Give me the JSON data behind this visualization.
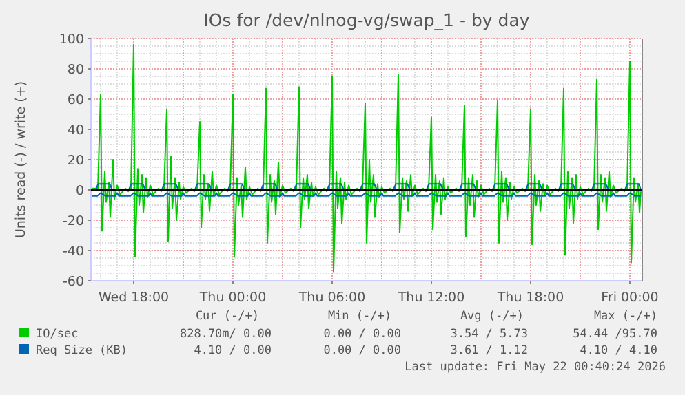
{
  "chart_data": {
    "type": "line",
    "title": "IOs for /dev/nlnog-vg/swap_1 - by day",
    "ylabel": "Units read (-) / write (+)",
    "xlim": [
      "2026-05-20T15:25",
      "2026-05-22T00:45"
    ],
    "xticks": [
      {
        "value": "2026-05-20T18:00",
        "label": "Wed 18:00"
      },
      {
        "value": "2026-05-21T00:00",
        "label": "Thu 00:00"
      },
      {
        "value": "2026-05-21T06:00",
        "label": "Thu 06:00"
      },
      {
        "value": "2026-05-21T12:00",
        "label": "Thu 12:00"
      },
      {
        "value": "2026-05-21T18:00",
        "label": "Thu 18:00"
      },
      {
        "value": "2026-05-22T00:00",
        "label": "Fri 00:00"
      }
    ],
    "ylim": [
      -60,
      100
    ],
    "yticks": [
      -60,
      -40,
      -20,
      0,
      20,
      40,
      60,
      80,
      100
    ],
    "grid": true,
    "legend": "bottom",
    "ref_lines": [
      {
        "axis": "y",
        "value": 0,
        "color": "#000000"
      }
    ],
    "annotations": [
      "Cur (-/+)",
      "Min (-/+)",
      "Avg (-/+)",
      "Max (-/+)",
      "828.70m/ 0.00",
      "0.00 / 0.00",
      "3.54 / 5.73",
      "54.44 /95.70",
      "4.10 / 0.00",
      "0.00 / 0.00",
      "3.61 / 1.12",
      "4.10 / 4.10",
      "Last update: Fri May 22 00:40:24 2026"
    ],
    "series": [
      {
        "name": "IO/sec",
        "color": "#00cc00",
        "x": [
          "2026-05-20T15:30",
          "2026-05-20T15:50",
          "2026-05-20T16:00",
          "2026-05-20T16:05",
          "2026-05-20T16:15",
          "2026-05-20T16:20",
          "2026-05-20T16:30",
          "2026-05-20T16:35",
          "2026-05-20T16:45",
          "2026-05-20T16:50",
          "2026-05-20T17:00",
          "2026-05-20T17:10",
          "2026-05-20T17:30",
          "2026-05-20T17:40",
          "2026-05-20T17:50",
          "2026-05-20T18:00",
          "2026-05-20T18:05",
          "2026-05-20T18:15",
          "2026-05-20T18:20",
          "2026-05-20T18:30",
          "2026-05-20T18:35",
          "2026-05-20T18:45",
          "2026-05-20T18:50",
          "2026-05-20T19:00",
          "2026-05-20T19:10",
          "2026-05-20T19:30",
          "2026-05-20T19:40",
          "2026-05-20T19:50",
          "2026-05-20T20:00",
          "2026-05-20T20:05",
          "2026-05-20T20:15",
          "2026-05-20T20:20",
          "2026-05-20T20:30",
          "2026-05-20T20:35",
          "2026-05-20T20:45",
          "2026-05-20T20:50",
          "2026-05-20T21:00",
          "2026-05-20T21:10",
          "2026-05-20T21:30",
          "2026-05-20T21:40",
          "2026-05-20T21:50",
          "2026-05-20T22:00",
          "2026-05-20T22:05",
          "2026-05-20T22:15",
          "2026-05-20T22:20",
          "2026-05-20T22:30",
          "2026-05-20T22:35",
          "2026-05-20T22:45",
          "2026-05-20T22:50",
          "2026-05-20T23:00",
          "2026-05-20T23:10",
          "2026-05-20T23:30",
          "2026-05-20T23:40",
          "2026-05-20T23:50",
          "2026-05-21T00:00",
          "2026-05-21T00:05",
          "2026-05-21T00:15",
          "2026-05-21T00:20",
          "2026-05-21T00:30",
          "2026-05-21T00:35",
          "2026-05-21T00:45",
          "2026-05-21T00:50",
          "2026-05-21T01:00",
          "2026-05-21T01:10",
          "2026-05-21T01:30",
          "2026-05-21T01:40",
          "2026-05-21T01:50",
          "2026-05-21T02:00",
          "2026-05-21T02:05",
          "2026-05-21T02:15",
          "2026-05-21T02:20",
          "2026-05-21T02:30",
          "2026-05-21T02:35",
          "2026-05-21T02:45",
          "2026-05-21T02:50",
          "2026-05-21T03:00",
          "2026-05-21T03:10",
          "2026-05-21T03:30",
          "2026-05-21T03:40",
          "2026-05-21T03:50",
          "2026-05-21T04:00",
          "2026-05-21T04:05",
          "2026-05-21T04:15",
          "2026-05-21T04:20",
          "2026-05-21T04:30",
          "2026-05-21T04:35",
          "2026-05-21T04:45",
          "2026-05-21T04:50",
          "2026-05-21T05:00",
          "2026-05-21T05:10",
          "2026-05-21T05:30",
          "2026-05-21T05:40",
          "2026-05-21T05:50",
          "2026-05-21T06:00",
          "2026-05-21T06:05",
          "2026-05-21T06:15",
          "2026-05-21T06:20",
          "2026-05-21T06:30",
          "2026-05-21T06:35",
          "2026-05-21T06:45",
          "2026-05-21T06:50",
          "2026-05-21T07:00",
          "2026-05-21T07:10",
          "2026-05-21T07:30",
          "2026-05-21T07:40",
          "2026-05-21T07:50",
          "2026-05-21T08:00",
          "2026-05-21T08:05",
          "2026-05-21T08:15",
          "2026-05-21T08:20",
          "2026-05-21T08:30",
          "2026-05-21T08:35",
          "2026-05-21T08:45",
          "2026-05-21T08:50",
          "2026-05-21T09:00",
          "2026-05-21T09:10",
          "2026-05-21T09:30",
          "2026-05-21T09:40",
          "2026-05-21T09:50",
          "2026-05-21T10:00",
          "2026-05-21T10:05",
          "2026-05-21T10:15",
          "2026-05-21T10:20",
          "2026-05-21T10:30",
          "2026-05-21T10:35",
          "2026-05-21T10:45",
          "2026-05-21T10:50",
          "2026-05-21T11:00",
          "2026-05-21T11:10",
          "2026-05-21T11:30",
          "2026-05-21T11:40",
          "2026-05-21T11:50",
          "2026-05-21T12:00",
          "2026-05-21T12:05",
          "2026-05-21T12:15",
          "2026-05-21T12:20",
          "2026-05-21T12:30",
          "2026-05-21T12:35",
          "2026-05-21T12:45",
          "2026-05-21T12:50",
          "2026-05-21T13:00",
          "2026-05-21T13:10",
          "2026-05-21T13:30",
          "2026-05-21T13:40",
          "2026-05-21T13:50",
          "2026-05-21T14:00",
          "2026-05-21T14:05",
          "2026-05-21T14:15",
          "2026-05-21T14:20",
          "2026-05-21T14:30",
          "2026-05-21T14:35",
          "2026-05-21T14:45",
          "2026-05-21T14:50",
          "2026-05-21T15:00",
          "2026-05-21T15:10",
          "2026-05-21T15:30",
          "2026-05-21T15:40",
          "2026-05-21T15:50",
          "2026-05-21T16:00",
          "2026-05-21T16:05",
          "2026-05-21T16:15",
          "2026-05-21T16:20",
          "2026-05-21T16:30",
          "2026-05-21T16:35",
          "2026-05-21T16:45",
          "2026-05-21T16:50",
          "2026-05-21T17:00",
          "2026-05-21T17:10",
          "2026-05-21T17:30",
          "2026-05-21T17:40",
          "2026-05-21T17:50",
          "2026-05-21T18:00",
          "2026-05-21T18:05",
          "2026-05-21T18:15",
          "2026-05-21T18:20",
          "2026-05-21T18:30",
          "2026-05-21T18:35",
          "2026-05-21T18:45",
          "2026-05-21T18:50",
          "2026-05-21T19:00",
          "2026-05-21T19:10",
          "2026-05-21T19:30",
          "2026-05-21T19:40",
          "2026-05-21T19:50",
          "2026-05-21T20:00",
          "2026-05-21T20:05",
          "2026-05-21T20:15",
          "2026-05-21T20:20",
          "2026-05-21T20:30",
          "2026-05-21T20:35",
          "2026-05-21T20:45",
          "2026-05-21T20:50",
          "2026-05-21T21:00",
          "2026-05-21T21:10",
          "2026-05-21T21:30",
          "2026-05-21T21:40",
          "2026-05-21T21:50",
          "2026-05-21T22:00",
          "2026-05-21T22:05",
          "2026-05-21T22:15",
          "2026-05-21T22:20",
          "2026-05-21T22:30",
          "2026-05-21T22:35",
          "2026-05-21T22:45",
          "2026-05-21T22:50",
          "2026-05-21T23:00",
          "2026-05-21T23:10",
          "2026-05-21T23:30",
          "2026-05-21T23:40",
          "2026-05-21T23:50",
          "2026-05-22T00:00",
          "2026-05-22T00:05",
          "2026-05-22T00:15",
          "2026-05-22T00:20",
          "2026-05-22T00:30",
          "2026-05-22T00:35",
          "2026-05-22T00:40"
        ],
        "values": [
          1,
          1,
          63,
          -27,
          12,
          -8,
          5,
          -18,
          20,
          -6,
          3,
          -3,
          1,
          -1,
          1,
          96,
          -44,
          14,
          -10,
          10,
          -15,
          8,
          -5,
          3,
          -3,
          1,
          -1,
          1,
          53,
          -34,
          22,
          -12,
          8,
          -20,
          5,
          -6,
          2,
          -2,
          1,
          -1,
          1,
          45,
          -25,
          10,
          -6,
          4,
          -14,
          12,
          -4,
          3,
          -3,
          1,
          -1,
          1,
          63,
          -44,
          8,
          -10,
          3,
          -18,
          15,
          -6,
          2,
          -3,
          1,
          -1,
          1,
          67,
          -35,
          10,
          -8,
          6,
          -16,
          18,
          -5,
          3,
          -2,
          1,
          -1,
          1,
          68,
          -25,
          8,
          -6,
          10,
          -12,
          5,
          -4,
          2,
          -3,
          1,
          -1,
          1,
          75,
          -54,
          12,
          -12,
          8,
          -22,
          5,
          -6,
          3,
          -3,
          1,
          -1,
          1,
          57,
          -35,
          20,
          -8,
          10,
          -18,
          4,
          -5,
          2,
          -2,
          1,
          -1,
          1,
          76,
          -28,
          8,
          -6,
          6,
          -14,
          10,
          -4,
          3,
          -3,
          1,
          -1,
          1,
          48,
          -26,
          10,
          -8,
          6,
          -16,
          8,
          -6,
          2,
          -2,
          1,
          -1,
          1,
          56,
          -31,
          8,
          -10,
          10,
          -18,
          6,
          -5,
          3,
          -3,
          1,
          -1,
          1,
          59,
          -35,
          12,
          -8,
          8,
          -20,
          5,
          -6,
          2,
          -2,
          1,
          -1,
          1,
          53,
          -36,
          10,
          -10,
          6,
          -14,
          4,
          -4,
          3,
          -3,
          1,
          -1,
          1,
          67,
          -43,
          12,
          -12,
          8,
          -22,
          10,
          -6,
          2,
          -3,
          1,
          -1,
          1,
          73,
          -26,
          10,
          -8,
          8,
          -14,
          12,
          -5,
          3,
          -2,
          1,
          -1,
          1,
          85,
          -48,
          8,
          -8,
          4,
          -15,
          -1
        ]
      },
      {
        "color": "#0066b3",
        "x": [
          "2026-05-20T15:30",
          "2026-05-20T15:48",
          "2026-05-20T16:00",
          "2026-05-20T16:18",
          "2026-05-20T16:54",
          "2026-05-20T17:00",
          "2026-05-20T17:06",
          "2026-05-20T17:48",
          "2026-05-20T18:00",
          "2026-05-20T18:18",
          "2026-05-20T18:54",
          "2026-05-20T19:00",
          "2026-05-20T19:06",
          "2026-05-20T19:48",
          "2026-05-20T20:00",
          "2026-05-20T20:18",
          "2026-05-20T20:54",
          "2026-05-20T21:00",
          "2026-05-20T21:06",
          "2026-05-20T21:48",
          "2026-05-20T22:00",
          "2026-05-20T22:18",
          "2026-05-20T22:54",
          "2026-05-20T23:00",
          "2026-05-20T23:06",
          "2026-05-20T23:48",
          "2026-05-21T00:00",
          "2026-05-21T00:18",
          "2026-05-21T00:54",
          "2026-05-21T01:00",
          "2026-05-21T01:06",
          "2026-05-21T01:48",
          "2026-05-21T02:00",
          "2026-05-21T02:18",
          "2026-05-21T02:54",
          "2026-05-21T03:00",
          "2026-05-21T03:06",
          "2026-05-21T03:48",
          "2026-05-21T04:00",
          "2026-05-21T04:18",
          "2026-05-21T04:54",
          "2026-05-21T05:00",
          "2026-05-21T05:06",
          "2026-05-21T05:48",
          "2026-05-21T06:00",
          "2026-05-21T06:18",
          "2026-05-21T06:54",
          "2026-05-21T07:00",
          "2026-05-21T07:06",
          "2026-05-21T07:48",
          "2026-05-21T08:00",
          "2026-05-21T08:18",
          "2026-05-21T08:54",
          "2026-05-21T09:00",
          "2026-05-21T09:06",
          "2026-05-21T09:48",
          "2026-05-21T10:00",
          "2026-05-21T10:18",
          "2026-05-21T10:54",
          "2026-05-21T11:00",
          "2026-05-21T11:06",
          "2026-05-21T11:48",
          "2026-05-21T12:00",
          "2026-05-21T12:18",
          "2026-05-21T12:54",
          "2026-05-21T13:00",
          "2026-05-21T13:06",
          "2026-05-21T13:48",
          "2026-05-21T14:00",
          "2026-05-21T14:18",
          "2026-05-21T14:54",
          "2026-05-21T15:00",
          "2026-05-21T15:06",
          "2026-05-21T15:48",
          "2026-05-21T16:00",
          "2026-05-21T16:18",
          "2026-05-21T16:54",
          "2026-05-21T17:00",
          "2026-05-21T17:06",
          "2026-05-21T17:48",
          "2026-05-21T18:00",
          "2026-05-21T18:18",
          "2026-05-21T18:54",
          "2026-05-21T19:00",
          "2026-05-21T19:06",
          "2026-05-21T19:48",
          "2026-05-21T20:00",
          "2026-05-21T20:18",
          "2026-05-21T20:54",
          "2026-05-21T21:00",
          "2026-05-21T21:06",
          "2026-05-21T21:48",
          "2026-05-21T22:00",
          "2026-05-21T22:18",
          "2026-05-21T22:54",
          "2026-05-21T23:00",
          "2026-05-21T23:06",
          "2026-05-21T23:48",
          "2026-05-22T00:00",
          "2026-05-22T00:18",
          "2026-05-22T00:40"
        ],
        "values": [
          -4,
          -4,
          -2,
          -4,
          -4,
          -2,
          -4,
          -4,
          -2,
          -4,
          -4,
          -2,
          -4,
          -4,
          -2,
          -4,
          -4,
          -2,
          -4,
          -4,
          -2,
          -4,
          -4,
          -2,
          -4,
          -4,
          -2,
          -4,
          -4,
          -2,
          -4,
          -4,
          -2,
          -4,
          -4,
          -2,
          -4,
          -4,
          -2,
          -4,
          -4,
          -2,
          -4,
          -4,
          -2,
          -4,
          -4,
          -2,
          -4,
          -4,
          -2,
          -4,
          -4,
          -2,
          -4,
          -4,
          -2,
          -4,
          -4,
          -2,
          -4,
          -4,
          -2,
          -4,
          -4,
          -2,
          -4,
          -4,
          -2,
          -4,
          -4,
          -2,
          -4,
          -4,
          -2,
          -4,
          -4,
          -2,
          -4,
          -4,
          -2,
          -4,
          -4,
          -2,
          -4,
          -4,
          -2,
          -4,
          -4,
          -2,
          -4,
          -4,
          -2,
          -4,
          -4,
          -2,
          -4,
          -4,
          -2,
          -4,
          -4
        ]
      },
      {
        "name": "Req Size (KB)",
        "color": "#0066b3",
        "x": [
          "2026-05-20T15:30",
          "2026-05-20T15:42",
          "2026-05-20T15:51",
          "2026-05-20T16:33",
          "2026-05-20T16:42",
          "2026-05-20T17:42",
          "2026-05-20T17:51",
          "2026-05-20T18:33",
          "2026-05-20T18:42",
          "2026-05-20T19:42",
          "2026-05-20T19:51",
          "2026-05-20T20:33",
          "2026-05-20T20:42",
          "2026-05-20T21:42",
          "2026-05-20T21:51",
          "2026-05-20T22:33",
          "2026-05-20T22:42",
          "2026-05-20T23:42",
          "2026-05-20T23:51",
          "2026-05-21T00:33",
          "2026-05-21T00:42",
          "2026-05-21T01:42",
          "2026-05-21T01:51",
          "2026-05-21T02:33",
          "2026-05-21T02:42",
          "2026-05-21T03:42",
          "2026-05-21T03:51",
          "2026-05-21T04:33",
          "2026-05-21T04:42",
          "2026-05-21T05:42",
          "2026-05-21T05:51",
          "2026-05-21T06:33",
          "2026-05-21T06:42",
          "2026-05-21T07:42",
          "2026-05-21T07:51",
          "2026-05-21T08:33",
          "2026-05-21T08:42",
          "2026-05-21T09:42",
          "2026-05-21T09:51",
          "2026-05-21T10:33",
          "2026-05-21T10:42",
          "2026-05-21T11:42",
          "2026-05-21T11:51",
          "2026-05-21T12:33",
          "2026-05-21T12:42",
          "2026-05-21T13:42",
          "2026-05-21T13:51",
          "2026-05-21T14:33",
          "2026-05-21T14:42",
          "2026-05-21T15:42",
          "2026-05-21T15:51",
          "2026-05-21T16:33",
          "2026-05-21T16:42",
          "2026-05-21T17:42",
          "2026-05-21T17:51",
          "2026-05-21T18:33",
          "2026-05-21T18:42",
          "2026-05-21T19:42",
          "2026-05-21T19:51",
          "2026-05-21T20:33",
          "2026-05-21T20:42",
          "2026-05-21T21:42",
          "2026-05-21T21:51",
          "2026-05-21T22:33",
          "2026-05-21T22:42",
          "2026-05-21T23:42",
          "2026-05-21T23:51",
          "2026-05-22T00:33",
          "2026-05-22T00:40"
        ],
        "values": [
          0,
          0,
          4,
          4,
          0,
          0,
          4,
          4,
          0,
          0,
          4,
          4,
          0,
          0,
          4,
          4,
          0,
          0,
          4,
          4,
          0,
          0,
          4,
          4,
          0,
          0,
          4,
          4,
          0,
          0,
          4,
          4,
          0,
          0,
          4,
          4,
          0,
          0,
          4,
          4,
          0,
          0,
          4,
          4,
          0,
          0,
          4,
          4,
          0,
          0,
          4,
          4,
          0,
          0,
          4,
          4,
          0,
          0,
          4,
          4,
          0,
          0,
          4,
          4,
          0,
          0,
          4,
          4,
          0
        ]
      }
    ]
  }
}
